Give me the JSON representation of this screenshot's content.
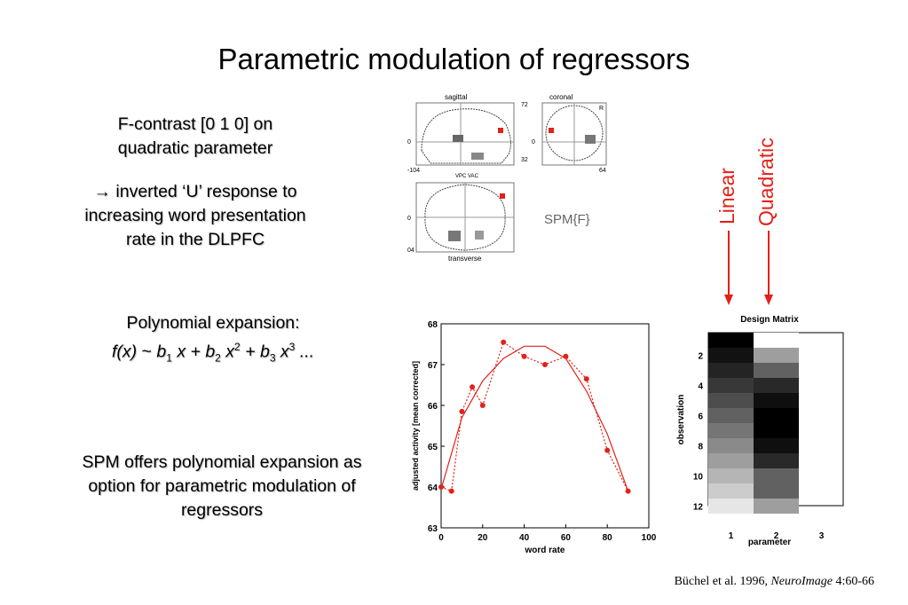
{
  "slide": {
    "title": "Parametric modulation of regressors",
    "contrast_text": {
      "line1": "F-contrast [0 1 0] on",
      "line2": "quadratic parameter"
    },
    "response_text": {
      "arrow": "→",
      "line1": "inverted ‘U’ response to",
      "line2": "increasing word presentation",
      "line3": "rate in the DLPFC"
    },
    "polynomial": {
      "heading": "Polynomial expansion:",
      "fx": "f(x)",
      "tilde": " ~ ",
      "b1": "b",
      "s1": "1",
      "x1": " x + ",
      "b2": "b",
      "s2": "2",
      "x2": " x",
      "p2": "2",
      "plus2": " + ",
      "b3": "b",
      "s3": "3",
      "x3": " x",
      "p3": "3",
      "ellipsis": " ..."
    },
    "spm_offer": {
      "line1": "SPM offers polynomial expansion as",
      "line2": "option for parametric modulation of",
      "line3": "regressors"
    },
    "spm_label": "SPM{F}",
    "linear_label": "Linear",
    "quadratic_label": "Quadratic",
    "citation": {
      "authors": "Büchel et al. 1996, ",
      "journal": "NeuroImage",
      "pages": " 4:60-66"
    },
    "colors": {
      "accent": "#e32119",
      "marker": "#e32119"
    }
  },
  "brain": {
    "sagittal_label": "sagittal",
    "coronal_label": "coronal",
    "transverse_label": "transverse",
    "vpc_vac": "VPC VAC",
    "num_72": "72",
    "num_32": "32",
    "num_0a": "0",
    "num_0b": "0",
    "num_0c": "0",
    "num_neg104": "-104",
    "num_64": "64",
    "num_04": "04",
    "r_label": "R"
  },
  "chart_data": {
    "type": "line",
    "xlabel": "word rate",
    "ylabel": "adjusted activity [mean corrected]",
    "xlim": [
      0,
      100
    ],
    "ylim": [
      63,
      68
    ],
    "xticks": [
      0,
      20,
      40,
      60,
      80,
      100
    ],
    "yticks": [
      63,
      64,
      65,
      66,
      67,
      68
    ],
    "series": [
      {
        "style": "dotted-markers",
        "x": [
          0,
          5,
          10,
          15,
          20,
          30,
          40,
          50,
          60,
          70,
          80,
          90
        ],
        "y": [
          64.0,
          63.9,
          65.85,
          66.45,
          66.0,
          67.55,
          67.2,
          67.0,
          67.2,
          66.65,
          64.9,
          63.9
        ]
      },
      {
        "style": "solid",
        "x": [
          0,
          10,
          20,
          30,
          40,
          50,
          60,
          70,
          80,
          90
        ],
        "y": [
          63.95,
          65.7,
          66.6,
          67.15,
          67.45,
          67.45,
          67.15,
          66.35,
          65.3,
          63.9
        ]
      }
    ]
  },
  "design_matrix": {
    "title": "Design Matrix",
    "xlabel": "parameter",
    "ylabel": "observation",
    "xticks": [
      "1",
      "2",
      "3"
    ],
    "yticks": [
      "2",
      "4",
      "6",
      "8",
      "10",
      "12"
    ],
    "columns": [
      [
        0.0,
        0.07,
        0.14,
        0.22,
        0.3,
        0.38,
        0.46,
        0.54,
        0.62,
        0.71,
        0.8,
        0.9
      ],
      [
        1,
        0.62,
        0.38,
        0.16,
        0.06,
        0.0,
        0.0,
        0.06,
        0.16,
        0.38,
        0.38,
        0.62
      ]
    ]
  }
}
